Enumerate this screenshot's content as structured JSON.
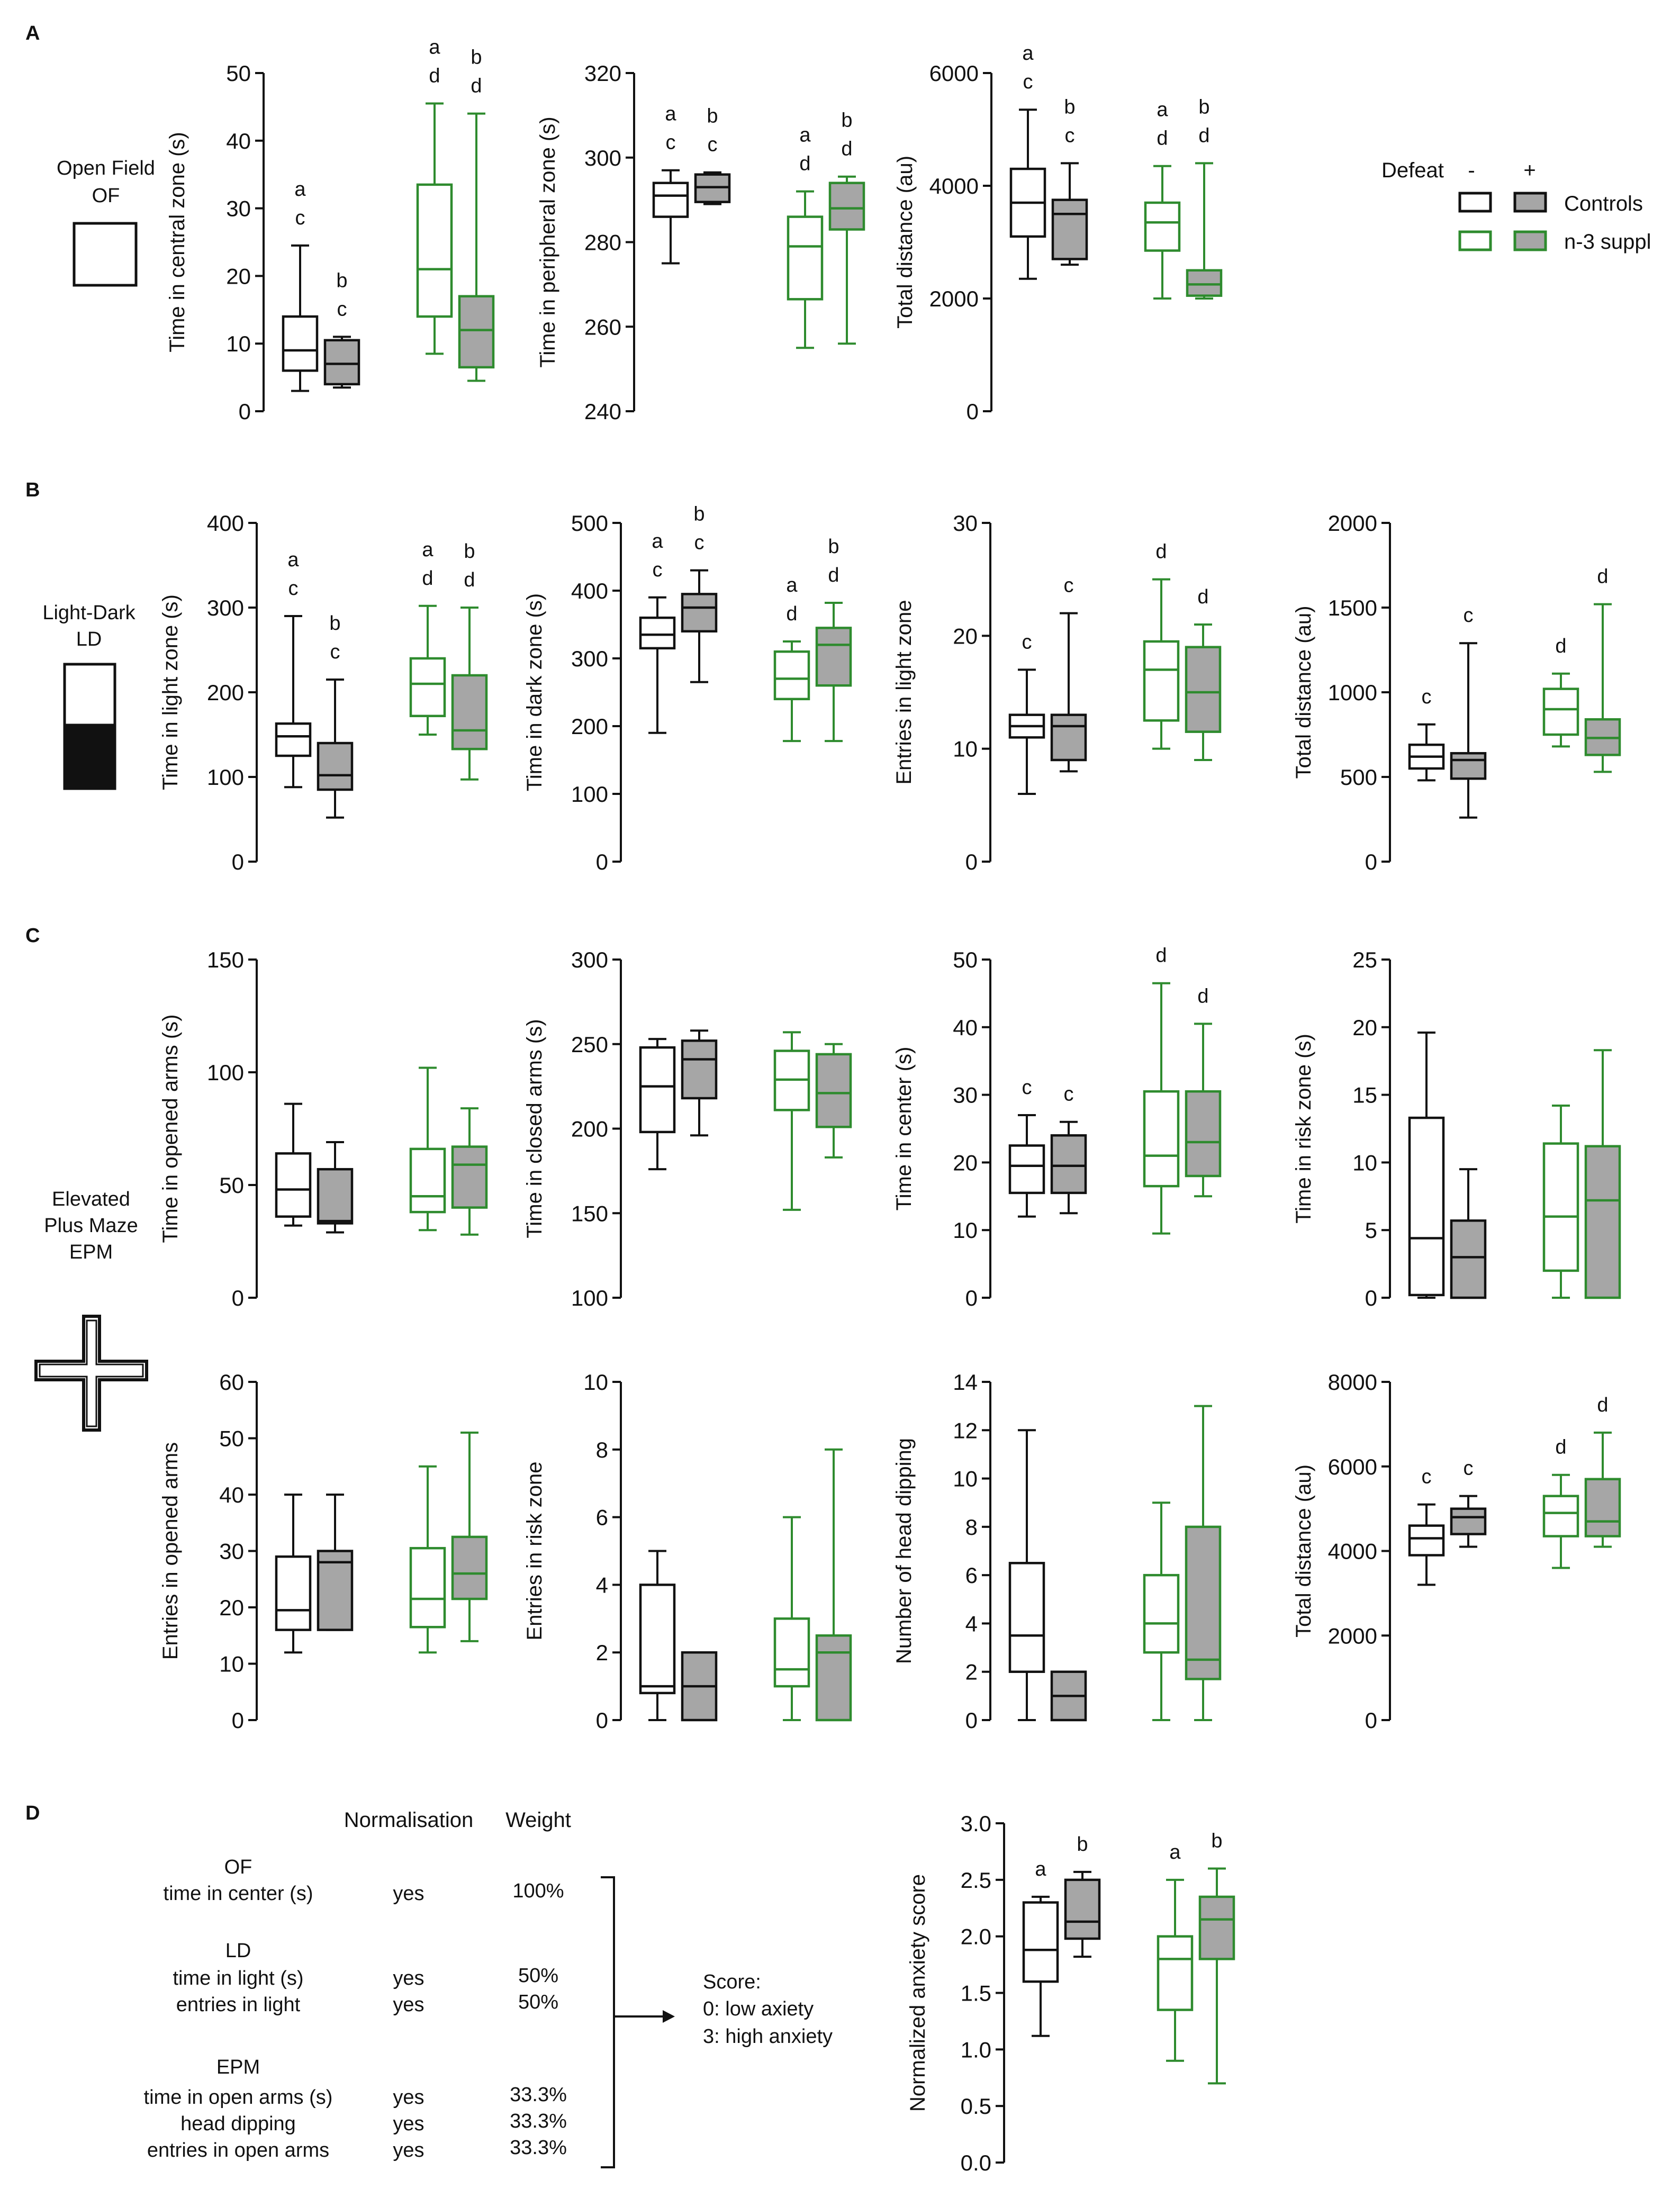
{
  "figure": {
    "panel_letters": [
      "A",
      "B",
      "C",
      "D"
    ],
    "defeat_label": "Defeat",
    "defeat_minus": "-",
    "defeat_plus": "+",
    "groups": [
      {
        "name": "Controls",
        "color": "#111111",
        "fill": "#a6a6a6"
      },
      {
        "name": "n-3 suppl",
        "color": "#2e8b2e",
        "fill": "#a6a6a6"
      }
    ],
    "legend_order": [
      "Control, no defeat",
      "Control, defeat",
      "n-3 suppl, no defeat",
      "n-3 suppl, defeat"
    ],
    "schematics": {
      "of": [
        "Open Field",
        "OF"
      ],
      "ld": [
        "Light-Dark",
        "LD"
      ],
      "epm": [
        "Elevated",
        "Plus Maze",
        "EPM"
      ]
    },
    "score_table": {
      "headers": [
        "Normalisation",
        "Weight"
      ],
      "sections": [
        {
          "title": "OF",
          "rows": [
            {
              "measure": "time in center (s)",
              "norm": "yes",
              "weight": "100%"
            }
          ]
        },
        {
          "title": "LD",
          "rows": [
            {
              "measure": "time in light (s)",
              "norm": "yes",
              "weight": "50%"
            },
            {
              "measure": "entries in light",
              "norm": "yes",
              "weight": "50%"
            }
          ]
        },
        {
          "title": "EPM",
          "rows": [
            {
              "measure": "time in open arms (s)",
              "norm": "yes",
              "weight": "33.3%"
            },
            {
              "measure": "head dipping",
              "norm": "yes",
              "weight": "33.3%"
            },
            {
              "measure": "entries in open arms",
              "norm": "yes",
              "weight": "33.3%"
            }
          ]
        }
      ],
      "score_lines": [
        "Score:",
        "0: low axiety",
        "3: high anxiety"
      ]
    }
  },
  "chart_data": [
    {
      "type": "box",
      "id": "a1",
      "panel": "A",
      "ylabel": "Time in central zone (s)",
      "ylim": [
        0,
        50
      ],
      "ticks": [
        0,
        10,
        20,
        30,
        40,
        50
      ],
      "boxes": [
        {
          "min": 3,
          "q1": 6,
          "median": 9,
          "q3": 14,
          "max": 24.5
        },
        {
          "min": 3.5,
          "q1": 4,
          "median": 7,
          "q3": 10.5,
          "max": 11
        },
        {
          "min": 8.5,
          "q1": 14,
          "median": 21,
          "q3": 33.5,
          "max": 45.5
        },
        {
          "min": 4.5,
          "q1": 6.5,
          "median": 12,
          "q3": 17,
          "max": 44
        }
      ],
      "letters": [
        [
          "a",
          "c"
        ],
        [
          "b",
          "c"
        ],
        [
          "a",
          "d"
        ],
        [
          "b",
          "d"
        ]
      ]
    },
    {
      "type": "box",
      "id": "a2",
      "panel": "A",
      "ylabel": "Time in peripheral zone (s)",
      "ylim": [
        240,
        320
      ],
      "ticks": [
        240,
        260,
        280,
        300,
        320
      ],
      "boxes": [
        {
          "min": 275,
          "q1": 286,
          "median": 291,
          "q3": 294,
          "max": 297
        },
        {
          "min": 289,
          "q1": 289.5,
          "median": 293,
          "q3": 296,
          "max": 296.5
        },
        {
          "min": 255,
          "q1": 266.5,
          "median": 279,
          "q3": 286,
          "max": 292
        },
        {
          "min": 256,
          "q1": 283,
          "median": 288,
          "q3": 294,
          "max": 295.5
        }
      ],
      "letters": [
        [
          "a",
          "c"
        ],
        [
          "b",
          "c"
        ],
        [
          "a",
          "d"
        ],
        [
          "b",
          "d"
        ]
      ]
    },
    {
      "type": "box",
      "id": "a3",
      "panel": "A",
      "ylabel": "Total distance (au)",
      "ylim": [
        0,
        6000
      ],
      "ticks": [
        0,
        2000,
        4000,
        6000
      ],
      "boxes": [
        {
          "min": 2350,
          "q1": 3100,
          "median": 3700,
          "q3": 4300,
          "max": 5350
        },
        {
          "min": 2600,
          "q1": 2700,
          "median": 3500,
          "q3": 3750,
          "max": 4400
        },
        {
          "min": 2000,
          "q1": 2850,
          "median": 3350,
          "q3": 3700,
          "max": 4350
        },
        {
          "min": 2000,
          "q1": 2050,
          "median": 2250,
          "q3": 2500,
          "max": 4400
        }
      ],
      "letters": [
        [
          "a",
          "c"
        ],
        [
          "b",
          "c"
        ],
        [
          "a",
          "d"
        ],
        [
          "b",
          "d"
        ]
      ]
    },
    {
      "type": "box",
      "id": "b1",
      "panel": "B",
      "ylabel": "Time in light zone (s)",
      "ylim": [
        0,
        400
      ],
      "ticks": [
        0,
        100,
        200,
        300,
        400
      ],
      "boxes": [
        {
          "min": 88,
          "q1": 125,
          "median": 148,
          "q3": 163,
          "max": 290
        },
        {
          "min": 52,
          "q1": 85,
          "median": 102,
          "q3": 140,
          "max": 215
        },
        {
          "min": 150,
          "q1": 172,
          "median": 210,
          "q3": 240,
          "max": 302
        },
        {
          "min": 97,
          "q1": 133,
          "median": 155,
          "q3": 220,
          "max": 300
        }
      ],
      "letters": [
        [
          "a",
          "c"
        ],
        [
          "b",
          "c"
        ],
        [
          "a",
          "d"
        ],
        [
          "b",
          "d"
        ]
      ]
    },
    {
      "type": "box",
      "id": "b2",
      "panel": "B",
      "ylabel": "Time in dark zone (s)",
      "ylim": [
        0,
        500
      ],
      "ticks": [
        0,
        100,
        200,
        300,
        400,
        500
      ],
      "boxes": [
        {
          "min": 190,
          "q1": 315,
          "median": 335,
          "q3": 360,
          "max": 390
        },
        {
          "min": 265,
          "q1": 340,
          "median": 375,
          "q3": 395,
          "max": 430
        },
        {
          "min": 178,
          "q1": 240,
          "median": 270,
          "q3": 310,
          "max": 325
        },
        {
          "min": 178,
          "q1": 260,
          "median": 320,
          "q3": 345,
          "max": 382
        }
      ],
      "letters": [
        [
          "a",
          "c"
        ],
        [
          "b",
          "c"
        ],
        [
          "a",
          "d"
        ],
        [
          "b",
          "d"
        ]
      ]
    },
    {
      "type": "box",
      "id": "b3",
      "panel": "B",
      "ylabel": "Entries in light zone",
      "ylim": [
        0,
        30
      ],
      "ticks": [
        0,
        10,
        20,
        30
      ],
      "boxes": [
        {
          "min": 6,
          "q1": 11,
          "median": 12,
          "q3": 13,
          "max": 17
        },
        {
          "min": 8,
          "q1": 9,
          "median": 12,
          "q3": 13,
          "max": 22
        },
        {
          "min": 10,
          "q1": 12.5,
          "median": 17,
          "q3": 19.5,
          "max": 25
        },
        {
          "min": 9,
          "q1": 11.5,
          "median": 15,
          "q3": 19,
          "max": 21
        }
      ],
      "letters": [
        [
          "c"
        ],
        [
          "c"
        ],
        [
          "d"
        ],
        [
          "d"
        ]
      ]
    },
    {
      "type": "box",
      "id": "b4",
      "panel": "B",
      "ylabel": "Total distance (au)",
      "ylim": [
        0,
        2000
      ],
      "ticks": [
        0,
        500,
        1000,
        1500,
        2000
      ],
      "boxes": [
        {
          "min": 480,
          "q1": 550,
          "median": 620,
          "q3": 690,
          "max": 810
        },
        {
          "min": 260,
          "q1": 490,
          "median": 600,
          "q3": 640,
          "max": 1290
        },
        {
          "min": 680,
          "q1": 750,
          "median": 900,
          "q3": 1020,
          "max": 1110
        },
        {
          "min": 530,
          "q1": 630,
          "median": 730,
          "q3": 840,
          "max": 1520
        }
      ],
      "letters": [
        [
          "c"
        ],
        [
          "c"
        ],
        [
          "d"
        ],
        [
          "d"
        ]
      ]
    },
    {
      "type": "box",
      "id": "c1",
      "panel": "C",
      "ylabel": "Time in opened arms (s)",
      "ylim": [
        0,
        150
      ],
      "ticks": [
        0,
        50,
        100,
        150
      ],
      "boxes": [
        {
          "min": 32,
          "q1": 36,
          "median": 48,
          "q3": 64,
          "max": 86
        },
        {
          "min": 29,
          "q1": 33,
          "median": 34,
          "q3": 57,
          "max": 69
        },
        {
          "min": 30,
          "q1": 38,
          "median": 45,
          "q3": 66,
          "max": 102
        },
        {
          "min": 28,
          "q1": 40,
          "median": 59,
          "q3": 67,
          "max": 84
        }
      ],
      "letters": [
        [],
        [],
        [],
        []
      ]
    },
    {
      "type": "box",
      "id": "c2",
      "panel": "C",
      "ylabel": "Time in closed arms (s)",
      "ylim": [
        100,
        300
      ],
      "ticks": [
        100,
        150,
        200,
        250,
        300
      ],
      "boxes": [
        {
          "min": 176,
          "q1": 198,
          "median": 225,
          "q3": 248,
          "max": 253
        },
        {
          "min": 196,
          "q1": 218,
          "median": 241,
          "q3": 252,
          "max": 258
        },
        {
          "min": 152,
          "q1": 211,
          "median": 229,
          "q3": 246,
          "max": 257
        },
        {
          "min": 183,
          "q1": 201,
          "median": 221,
          "q3": 244,
          "max": 250
        }
      ],
      "letters": [
        [],
        [],
        [],
        []
      ]
    },
    {
      "type": "box",
      "id": "c3",
      "panel": "C",
      "ylabel": "Time in center (s)",
      "ylim": [
        0,
        50
      ],
      "ticks": [
        0,
        10,
        20,
        30,
        40,
        50
      ],
      "boxes": [
        {
          "min": 12,
          "q1": 15.5,
          "median": 19.5,
          "q3": 22.5,
          "max": 27
        },
        {
          "min": 12.5,
          "q1": 15.5,
          "median": 19.5,
          "q3": 24,
          "max": 26
        },
        {
          "min": 9.5,
          "q1": 16.5,
          "median": 21,
          "q3": 30.5,
          "max": 46.5
        },
        {
          "min": 15,
          "q1": 18,
          "median": 23,
          "q3": 30.5,
          "max": 40.5
        }
      ],
      "letters": [
        [
          "c"
        ],
        [
          "c"
        ],
        [
          "d"
        ],
        [
          "d"
        ]
      ]
    },
    {
      "type": "box",
      "id": "c4",
      "panel": "C",
      "ylabel": "Time in risk zone (s)",
      "ylim": [
        0,
        25
      ],
      "ticks": [
        0,
        5,
        10,
        15,
        20,
        25
      ],
      "boxes": [
        {
          "min": 0,
          "q1": 0.2,
          "median": 4.4,
          "q3": 13.3,
          "max": 19.6
        },
        {
          "min": 0,
          "q1": 0,
          "median": 3,
          "q3": 5.7,
          "max": 9.5
        },
        {
          "min": 0,
          "q1": 2,
          "median": 6,
          "q3": 11.4,
          "max": 14.2
        },
        {
          "min": 0,
          "q1": 0,
          "median": 7.2,
          "q3": 11.2,
          "max": 18.3
        }
      ],
      "letters": [
        [],
        [],
        [],
        []
      ]
    },
    {
      "type": "box",
      "id": "c5",
      "panel": "C",
      "ylabel": "Entries in opened arms",
      "ylim": [
        0,
        60
      ],
      "ticks": [
        0,
        10,
        20,
        30,
        40,
        50,
        60
      ],
      "boxes": [
        {
          "min": 12,
          "q1": 16,
          "median": 19.5,
          "q3": 29,
          "max": 40
        },
        {
          "min": 16,
          "q1": 16,
          "median": 28,
          "q3": 30,
          "max": 40
        },
        {
          "min": 12,
          "q1": 16.5,
          "median": 21.5,
          "q3": 30.5,
          "max": 45
        },
        {
          "min": 14,
          "q1": 21.5,
          "median": 26,
          "q3": 32.5,
          "max": 51
        }
      ],
      "letters": [
        [],
        [],
        [],
        []
      ]
    },
    {
      "type": "box",
      "id": "c6",
      "panel": "C",
      "ylabel": "Entries in risk zone",
      "ylim": [
        0,
        10
      ],
      "ticks": [
        0,
        2,
        4,
        6,
        8,
        10
      ],
      "boxes": [
        {
          "min": 0,
          "q1": 0.8,
          "median": 1,
          "q3": 4,
          "max": 5
        },
        {
          "min": 0,
          "q1": 0,
          "median": 1,
          "q3": 2,
          "max": 2
        },
        {
          "min": 0,
          "q1": 1,
          "median": 1.5,
          "q3": 3,
          "max": 6
        },
        {
          "min": 0,
          "q1": 0,
          "median": 2,
          "q3": 2.5,
          "max": 8
        }
      ],
      "letters": [
        [],
        [],
        [],
        []
      ]
    },
    {
      "type": "box",
      "id": "c7",
      "panel": "C",
      "ylabel": "Number of head dipping",
      "ylim": [
        0,
        14
      ],
      "ticks": [
        0,
        2,
        4,
        6,
        8,
        10,
        12,
        14
      ],
      "boxes": [
        {
          "min": 0,
          "q1": 2,
          "median": 3.5,
          "q3": 6.5,
          "max": 12
        },
        {
          "min": 0,
          "q1": 0,
          "median": 1,
          "q3": 2,
          "max": 2
        },
        {
          "min": 0,
          "q1": 2.8,
          "median": 4,
          "q3": 6,
          "max": 9
        },
        {
          "min": 0,
          "q1": 1.7,
          "median": 2.5,
          "q3": 8,
          "max": 13
        }
      ],
      "letters": [
        [],
        [],
        [],
        []
      ]
    },
    {
      "type": "box",
      "id": "c8",
      "panel": "C",
      "ylabel": "Total distance (au)",
      "ylim": [
        0,
        8000
      ],
      "ticks": [
        0,
        2000,
        4000,
        6000,
        8000
      ],
      "boxes": [
        {
          "min": 3200,
          "q1": 3900,
          "median": 4300,
          "q3": 4600,
          "max": 5100
        },
        {
          "min": 4100,
          "q1": 4400,
          "median": 4800,
          "q3": 5000,
          "max": 5300
        },
        {
          "min": 3600,
          "q1": 4350,
          "median": 4900,
          "q3": 5300,
          "max": 5800
        },
        {
          "min": 4100,
          "q1": 4350,
          "median": 4700,
          "q3": 5700,
          "max": 6800
        }
      ],
      "letters": [
        [
          "c"
        ],
        [
          "c"
        ],
        [
          "d"
        ],
        [
          "d"
        ]
      ]
    },
    {
      "type": "box",
      "id": "d1",
      "panel": "D",
      "ylabel": "Normalized anxiety score",
      "ylim": [
        0,
        3
      ],
      "ticks": [
        "0.0",
        "0.5",
        "1.0",
        "1.5",
        "2.0",
        "2.5",
        "3.0"
      ],
      "boxes": [
        {
          "min": 1.12,
          "q1": 1.6,
          "median": 1.88,
          "q3": 2.3,
          "max": 2.35
        },
        {
          "min": 1.82,
          "q1": 1.98,
          "median": 2.13,
          "q3": 2.5,
          "max": 2.57
        },
        {
          "min": 0.9,
          "q1": 1.35,
          "median": 1.8,
          "q3": 2.0,
          "max": 2.5
        },
        {
          "min": 0.7,
          "q1": 1.8,
          "median": 2.15,
          "q3": 2.35,
          "max": 2.6
        }
      ],
      "letters": [
        [
          "a"
        ],
        [
          "b"
        ],
        [
          "a"
        ],
        [
          "b"
        ]
      ]
    }
  ]
}
